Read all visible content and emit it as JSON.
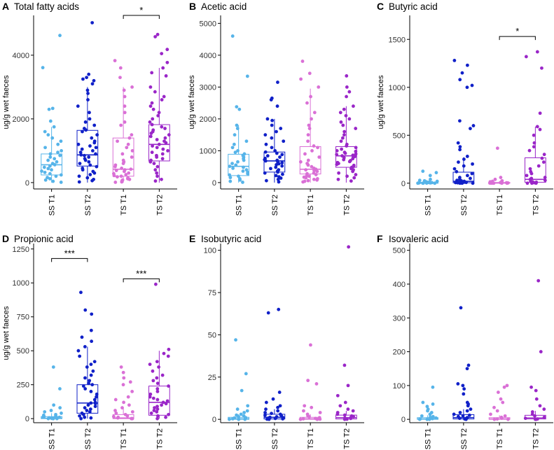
{
  "figure": {
    "colors": {
      "SS T1": "#56B4E9",
      "SS T2": "#1020C8",
      "TS T1": "#DA70D6",
      "TS T2": "#9A26C8",
      "axis": "#000000"
    }
  },
  "chart_data": [
    {
      "panel": "A",
      "title": "Total fatty acids",
      "type": "box+strip",
      "ylabel": "ug/g wet faeces",
      "ylim": [
        -200,
        5250
      ],
      "yticks": [
        0,
        2000,
        4000
      ],
      "categories": [
        "SS T1",
        "SS T2",
        "TS T1",
        "TS T2"
      ],
      "boxes": [
        {
          "q1": 240,
          "median": 560,
          "q3": 900,
          "lower": 0,
          "upper": 1750
        },
        {
          "q1": 520,
          "median": 870,
          "q3": 1640,
          "lower": 0,
          "upper": 3000
        },
        {
          "q1": 200,
          "median": 420,
          "q3": 1400,
          "lower": 0,
          "upper": 3000
        },
        {
          "q1": 680,
          "median": 1200,
          "q3": 1820,
          "lower": 0,
          "upper": 3600
        }
      ],
      "points": [
        [
          4620,
          3610,
          2330,
          2300,
          1930,
          1750,
          1600,
          1500,
          1400,
          1300,
          1200,
          1100,
          1000,
          950,
          900,
          850,
          800,
          750,
          700,
          650,
          600,
          560,
          520,
          480,
          440,
          400,
          360,
          320,
          280,
          240,
          200,
          160,
          120,
          80,
          40,
          10
        ],
        [
          5020,
          3400,
          3300,
          3250,
          3200,
          3100,
          2900,
          2800,
          2600,
          2400,
          2200,
          2000,
          1900,
          1800,
          1700,
          1650,
          1600,
          1500,
          1400,
          1300,
          1250,
          1200,
          1150,
          1100,
          1050,
          1000,
          950,
          900,
          870,
          850,
          800,
          750,
          700,
          650,
          600,
          550,
          500,
          450,
          400,
          350,
          300,
          250,
          200,
          150,
          100,
          60,
          20
        ],
        [
          3830,
          3600,
          3300,
          3000,
          2900,
          2700,
          2400,
          2200,
          1900,
          1800,
          1500,
          1400,
          1300,
          1200,
          1100,
          1000,
          900,
          800,
          700,
          650,
          600,
          550,
          500,
          450,
          420,
          400,
          380,
          350,
          300,
          280,
          250,
          220,
          200,
          180,
          150,
          120,
          100,
          80,
          60,
          40,
          20,
          10
        ],
        [
          4650,
          4580,
          4180,
          4050,
          3770,
          3600,
          3450,
          3350,
          3000,
          2850,
          2700,
          2600,
          2500,
          2400,
          2300,
          2200,
          2100,
          2000,
          1900,
          1820,
          1750,
          1700,
          1650,
          1600,
          1550,
          1500,
          1450,
          1400,
          1350,
          1300,
          1250,
          1200,
          1150,
          1100,
          1050,
          1000,
          950,
          900,
          850,
          800,
          750,
          700,
          650,
          600,
          500,
          400,
          300,
          200,
          100,
          50
        ]
      ],
      "significance": [
        {
          "from": 2,
          "to": 3,
          "label": "*",
          "y": 5250
        }
      ]
    },
    {
      "panel": "B",
      "title": "Acetic acid",
      "type": "box+strip",
      "ylabel": "ug/g wet faeces",
      "ylim": [
        -200,
        5250
      ],
      "yticks": [
        0,
        1000,
        2000,
        3000,
        4000,
        5000
      ],
      "categories": [
        "SS T1",
        "SS T2",
        "TS T1",
        "TS T2"
      ],
      "boxes": [
        {
          "q1": 220,
          "median": 510,
          "q3": 890,
          "lower": 0,
          "upper": 1800
        },
        {
          "q1": 330,
          "median": 680,
          "q3": 960,
          "lower": 0,
          "upper": 2000
        },
        {
          "q1": 270,
          "median": 420,
          "q3": 1130,
          "lower": 0,
          "upper": 2950
        },
        {
          "q1": 480,
          "median": 840,
          "q3": 1130,
          "lower": 0,
          "upper": 2400
        }
      ],
      "points": [
        [
          4600,
          3340,
          2380,
          2300,
          1800,
          1700,
          1500,
          1300,
          1200,
          1100,
          1000,
          950,
          900,
          850,
          800,
          750,
          700,
          650,
          600,
          550,
          510,
          480,
          450,
          400,
          360,
          320,
          280,
          240,
          200,
          160,
          120,
          80,
          40,
          10
        ],
        [
          3150,
          2650,
          2600,
          2400,
          2000,
          1950,
          1800,
          1700,
          1600,
          1500,
          1400,
          1300,
          1200,
          1100,
          1000,
          960,
          920,
          880,
          840,
          800,
          760,
          720,
          700,
          680,
          650,
          620,
          590,
          560,
          520,
          480,
          440,
          400,
          360,
          330,
          300,
          260,
          220,
          180,
          140,
          100,
          60,
          20
        ],
        [
          3810,
          3430,
          3250,
          3000,
          2700,
          2500,
          2200,
          2000,
          1800,
          1700,
          1500,
          1300,
          1150,
          1100,
          1000,
          900,
          800,
          700,
          650,
          600,
          550,
          500,
          450,
          420,
          400,
          380,
          350,
          300,
          280,
          250,
          220,
          200,
          170,
          150,
          120,
          100,
          80,
          60,
          40,
          20
        ],
        [
          3350,
          3000,
          2850,
          2700,
          2400,
          2300,
          2200,
          2100,
          2000,
          1900,
          1800,
          1700,
          1600,
          1500,
          1400,
          1300,
          1200,
          1150,
          1100,
          1050,
          1000,
          980,
          950,
          920,
          900,
          880,
          860,
          840,
          820,
          800,
          780,
          750,
          720,
          690,
          660,
          630,
          600,
          570,
          540,
          510,
          480,
          440,
          400,
          350,
          300,
          250,
          200,
          150,
          100,
          50
        ]
      ],
      "significance": []
    },
    {
      "panel": "C",
      "title": "Butyric acid",
      "type": "box+strip",
      "ylabel": "ug/g wet faeces",
      "ylim": [
        -60,
        1750
      ],
      "yticks": [
        0,
        500,
        1000,
        1500
      ],
      "categories": [
        "SS T1",
        "SS T2",
        "TS T1",
        "TS T2"
      ],
      "boxes": [
        {
          "q1": 0,
          "median": 2,
          "q3": 10,
          "lower": 0,
          "upper": 25
        },
        {
          "q1": 5,
          "median": 20,
          "q3": 115,
          "lower": 0,
          "upper": 270
        },
        {
          "q1": 0,
          "median": 2,
          "q3": 8,
          "lower": 0,
          "upper": 20
        },
        {
          "q1": 10,
          "median": 40,
          "q3": 265,
          "lower": 0,
          "upper": 590
        }
      ],
      "points": [
        [
          125,
          110,
          80,
          40,
          30,
          25,
          20,
          15,
          12,
          10,
          8,
          6,
          5,
          4,
          3,
          2,
          1,
          0,
          0,
          0,
          0,
          0
        ],
        [
          1280,
          1230,
          1150,
          1080,
          1020,
          1000,
          650,
          600,
          570,
          420,
          380,
          350,
          280,
          250,
          220,
          200,
          180,
          150,
          120,
          100,
          80,
          60,
          50,
          40,
          30,
          25,
          20,
          15,
          12,
          10,
          8,
          6,
          4,
          2,
          0,
          0,
          0
        ],
        [
          365,
          60,
          40,
          25,
          20,
          15,
          10,
          8,
          6,
          5,
          4,
          3,
          2,
          1,
          0,
          0,
          0,
          0
        ],
        [
          1370,
          1320,
          1200,
          730,
          590,
          560,
          500,
          420,
          380,
          340,
          300,
          260,
          220,
          180,
          150,
          120,
          100,
          80,
          60,
          50,
          40,
          30,
          20,
          15,
          10,
          5,
          0,
          0,
          0
        ]
      ],
      "significance": [
        {
          "from": 2,
          "to": 3,
          "label": "*",
          "y": 1530
        }
      ]
    },
    {
      "panel": "D",
      "title": "Propionic acid",
      "type": "box+strip",
      "ylabel": "ug/g wet faeces",
      "ylim": [
        -30,
        1290
      ],
      "yticks": [
        0,
        250,
        500,
        750,
        1000,
        1250
      ],
      "categories": [
        "SS T1",
        "SS T2",
        "TS T1",
        "TS T2"
      ],
      "boxes": [
        {
          "q1": 0,
          "median": 3,
          "q3": 15,
          "lower": 0,
          "upper": 40
        },
        {
          "q1": 40,
          "median": 115,
          "q3": 250,
          "lower": 0,
          "upper": 530
        },
        {
          "q1": 0,
          "median": 5,
          "q3": 30,
          "lower": 0,
          "upper": 80
        },
        {
          "q1": 25,
          "median": 120,
          "q3": 240,
          "lower": 0,
          "upper": 500
        }
      ],
      "points": [
        [
          380,
          220,
          100,
          80,
          60,
          50,
          40,
          30,
          25,
          20,
          15,
          12,
          10,
          8,
          6,
          4,
          2,
          0,
          0,
          0,
          0
        ],
        [
          930,
          800,
          770,
          650,
          600,
          570,
          530,
          500,
          460,
          420,
          400,
          380,
          350,
          320,
          300,
          280,
          260,
          250,
          240,
          220,
          200,
          180,
          160,
          140,
          120,
          115,
          110,
          100,
          90,
          80,
          70,
          60,
          50,
          40,
          30,
          20,
          10,
          5,
          0
        ],
        [
          380,
          340,
          300,
          270,
          250,
          200,
          160,
          140,
          120,
          100,
          80,
          60,
          50,
          40,
          30,
          20,
          15,
          10,
          5,
          0,
          0,
          0
        ],
        [
          990,
          510,
          480,
          460,
          420,
          400,
          380,
          350,
          320,
          300,
          280,
          260,
          240,
          220,
          200,
          180,
          160,
          150,
          140,
          130,
          120,
          110,
          100,
          90,
          80,
          70,
          60,
          50,
          40,
          30,
          20,
          10,
          0
        ]
      ],
      "significance": [
        {
          "from": 0,
          "to": 1,
          "label": "***",
          "y": 1180
        },
        {
          "from": 2,
          "to": 3,
          "label": "***",
          "y": 1030
        }
      ]
    },
    {
      "panel": "E",
      "title": "Isobutyric acid",
      "type": "box+strip",
      "ylabel": "",
      "ylim": [
        -2,
        104
      ],
      "yticks": [
        0,
        25,
        50,
        75,
        100
      ],
      "categories": [
        "SS T1",
        "SS T2",
        "TS T1",
        "TS T2"
      ],
      "boxes": [
        {
          "q1": 0,
          "median": 0.3,
          "q3": 1.2,
          "lower": 0,
          "upper": 3
        },
        {
          "q1": 0.2,
          "median": 1.2,
          "q3": 3,
          "lower": 0,
          "upper": 6
        },
        {
          "q1": 0,
          "median": 0.3,
          "q3": 1.2,
          "lower": 0,
          "upper": 3
        },
        {
          "q1": 0.2,
          "median": 1,
          "q3": 2.5,
          "lower": 0,
          "upper": 5
        }
      ],
      "points": [
        [
          47,
          27,
          17,
          8,
          6,
          5,
          4,
          3,
          2.5,
          2,
          1.5,
          1,
          0.8,
          0.5,
          0.3,
          0.1,
          0,
          0,
          0
        ],
        [
          65,
          63,
          16,
          12,
          10,
          8,
          7,
          6,
          5,
          4,
          3.5,
          3,
          2.5,
          2,
          1.5,
          1.2,
          1,
          0.8,
          0.5,
          0.3,
          0.1,
          0
        ],
        [
          44,
          23,
          21,
          8,
          7,
          5,
          4,
          3,
          2,
          1.5,
          1,
          0.5,
          0.3,
          0.1,
          0,
          0
        ],
        [
          102,
          32,
          20,
          14,
          10,
          8,
          6,
          5,
          4,
          3,
          2.5,
          2,
          1.5,
          1,
          0.8,
          0.5,
          0.3,
          0.1,
          0
        ]
      ],
      "significance": []
    },
    {
      "panel": "F",
      "title": "Isovaleric acid",
      "type": "box+strip",
      "ylabel": "",
      "ylim": [
        -10,
        520
      ],
      "yticks": [
        0,
        100,
        200,
        300,
        400,
        500
      ],
      "categories": [
        "SS T1",
        "SS T2",
        "TS T1",
        "TS T2"
      ],
      "boxes": [
        {
          "q1": 0,
          "median": 1,
          "q3": 5,
          "lower": 0,
          "upper": 12
        },
        {
          "q1": 1,
          "median": 5,
          "q3": 14,
          "lower": 0,
          "upper": 30
        },
        {
          "q1": 0,
          "median": 1,
          "q3": 5,
          "lower": 0,
          "upper": 12
        },
        {
          "q1": 1,
          "median": 4,
          "q3": 12,
          "lower": 0,
          "upper": 25
        }
      ],
      "points": [
        [
          95,
          50,
          45,
          38,
          30,
          25,
          20,
          15,
          10,
          8,
          6,
          4,
          2,
          1,
          0,
          0,
          0
        ],
        [
          330,
          160,
          150,
          105,
          100,
          90,
          75,
          50,
          45,
          40,
          30,
          25,
          20,
          15,
          12,
          10,
          8,
          5,
          3,
          1,
          0
        ],
        [
          100,
          95,
          80,
          60,
          50,
          35,
          25,
          15,
          10,
          6,
          3,
          1,
          0,
          0
        ],
        [
          410,
          200,
          95,
          85,
          60,
          40,
          30,
          22,
          15,
          10,
          6,
          3,
          1,
          0,
          0
        ]
      ],
      "significance": []
    }
  ]
}
